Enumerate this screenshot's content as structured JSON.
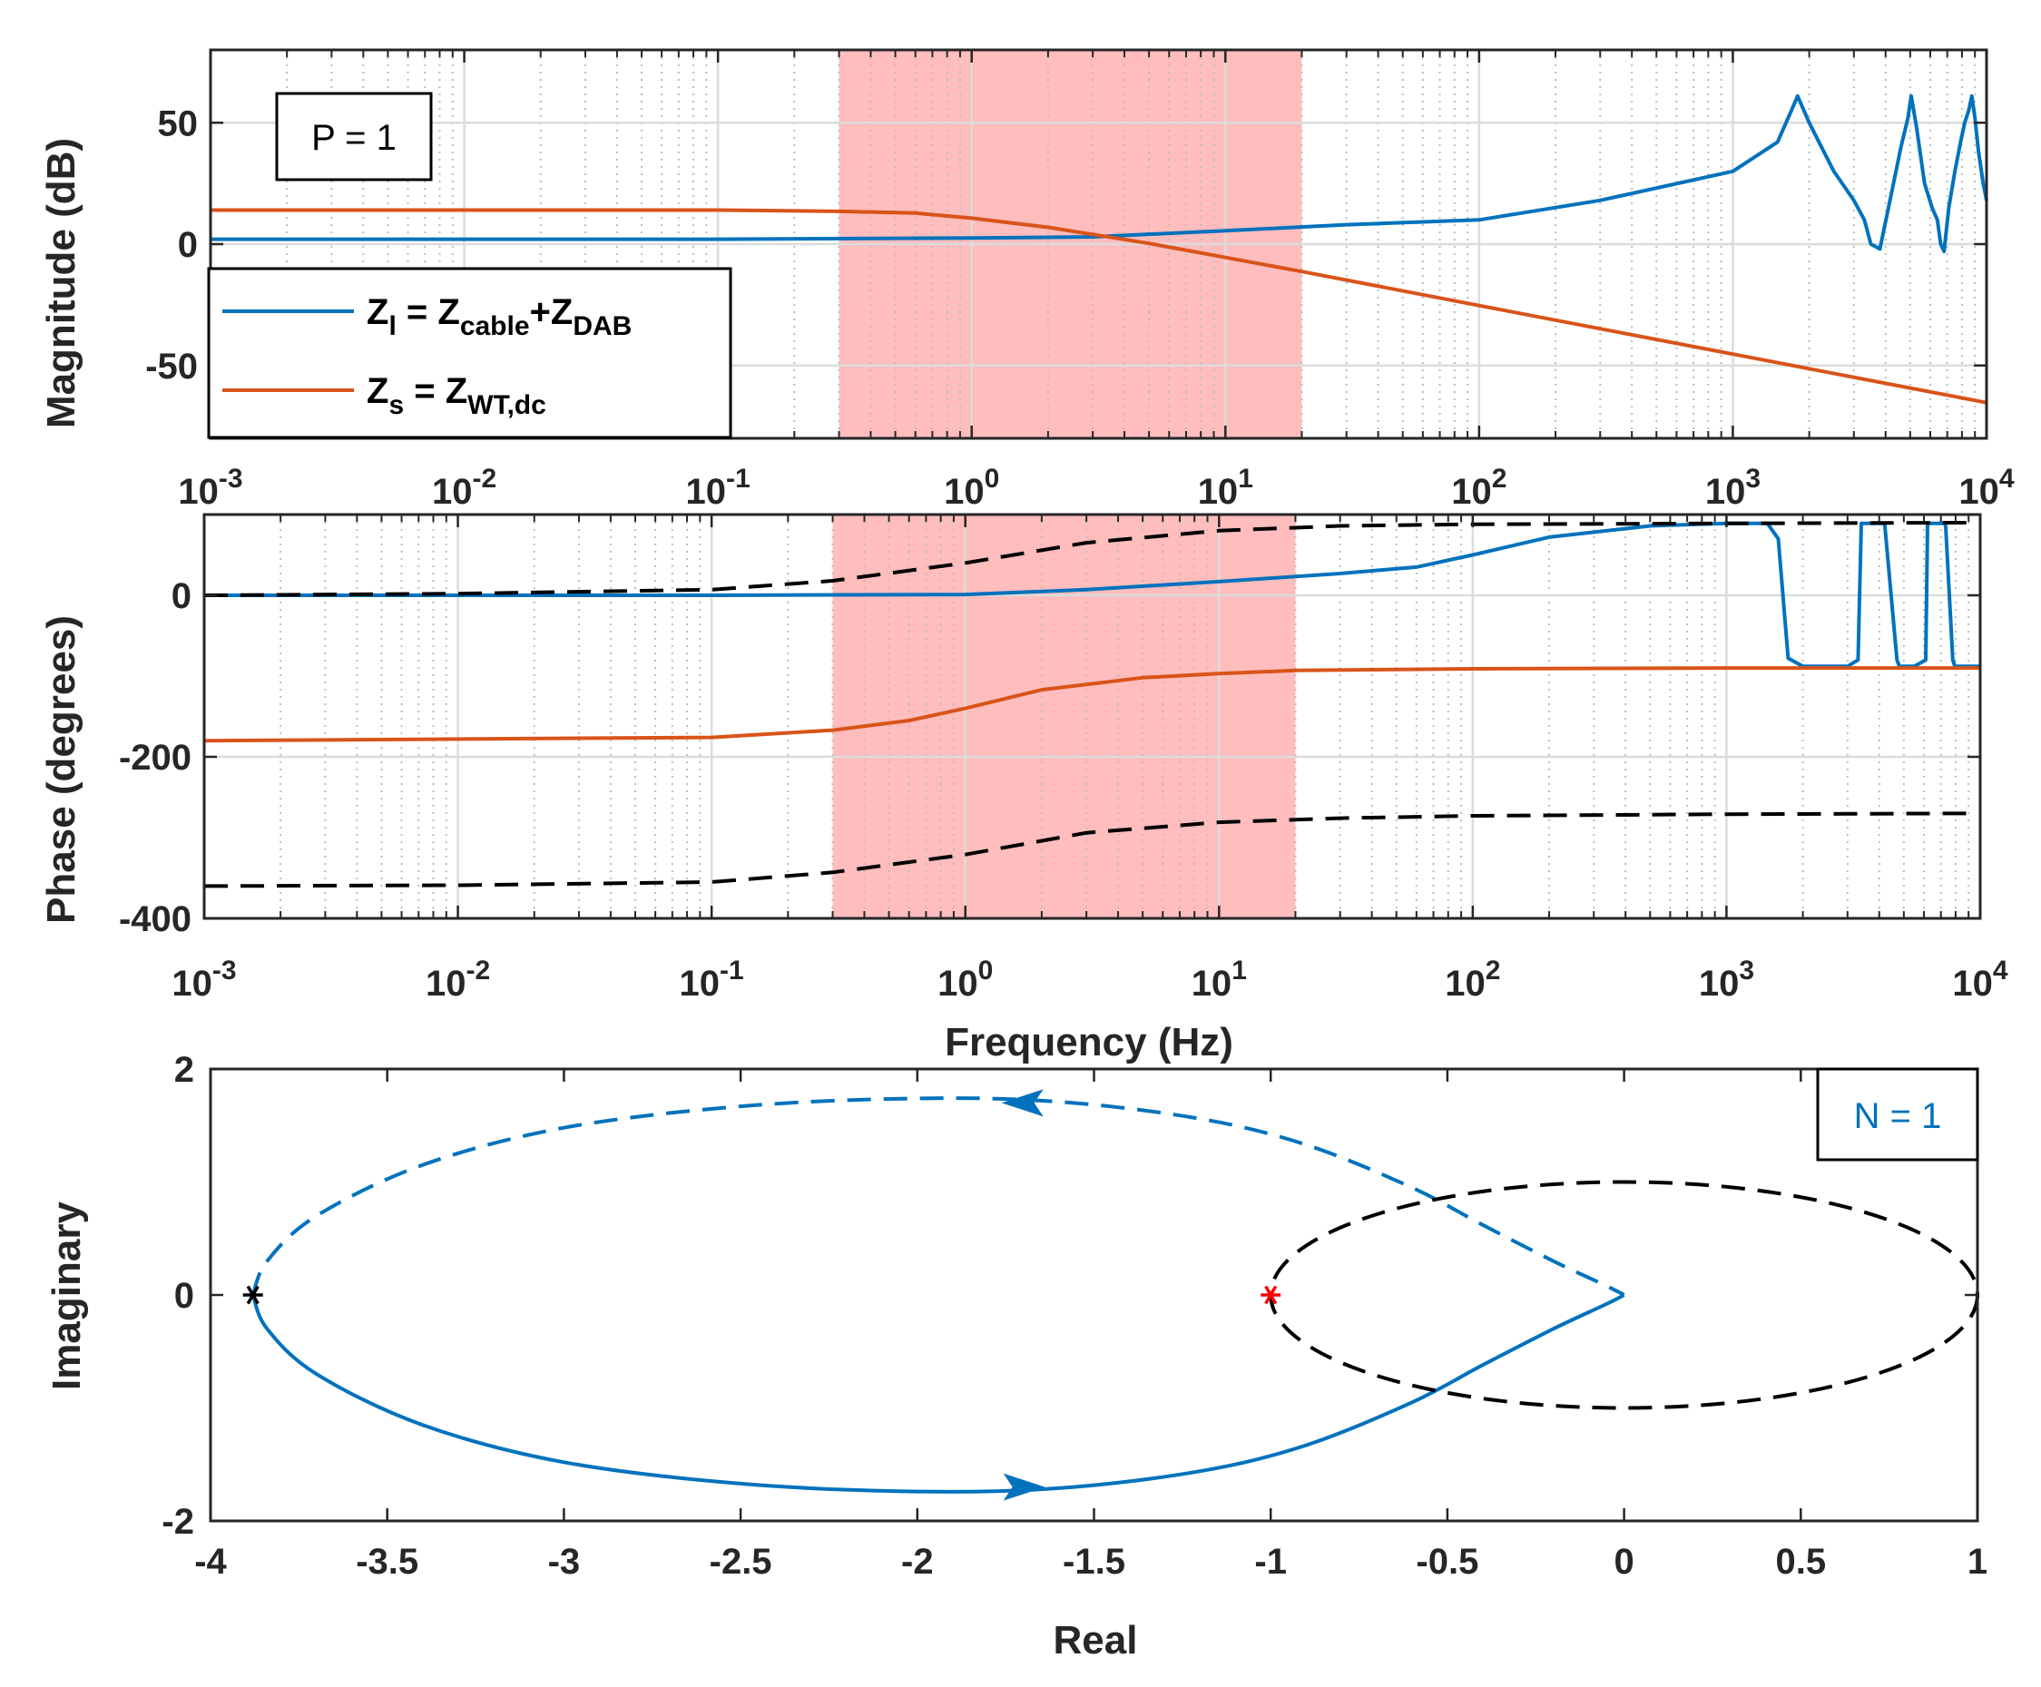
{
  "colors": {
    "zl": "#0072BD",
    "zs": "#D95319",
    "black": "#000000",
    "highlight": "#FF9999",
    "grid": "#DCDCDC",
    "axis": "#262626",
    "red_marker": "#FF0000"
  },
  "chart_data": [
    {
      "id": "magnitude",
      "type": "line",
      "xscale": "log",
      "xlim": [
        0.001,
        10000
      ],
      "ylim": [
        -80,
        80
      ],
      "xlabel": "",
      "ylabel": "Magnitude (dB)",
      "xtick_labels": [
        {
          "base": "10",
          "exp": "-3"
        },
        {
          "base": "10",
          "exp": "-2"
        },
        {
          "base": "10",
          "exp": "-1"
        },
        {
          "base": "10",
          "exp": "0"
        },
        {
          "base": "10",
          "exp": "1"
        },
        {
          "base": "10",
          "exp": "2"
        },
        {
          "base": "10",
          "exp": "3"
        },
        {
          "base": "10",
          "exp": "4"
        }
      ],
      "yticks": [
        50,
        0,
        -50
      ],
      "ytick_labels": [
        "50",
        "0",
        "-50"
      ],
      "grid": true,
      "highlight_band_hz": [
        0.3,
        20
      ],
      "annotation": "P = 1",
      "legend": {
        "position": "lower-left",
        "entries": [
          {
            "series": "Z_l",
            "main": "Z",
            "sub": "l",
            "mid": " = Z",
            "sub2": "cable",
            "mid2": "+Z",
            "sub3": "DAB"
          },
          {
            "series": "Z_s",
            "main": "Z",
            "sub": "s",
            "mid": " = Z",
            "sub2": "WT,dc",
            "mid2": "",
            "sub3": ""
          }
        ]
      },
      "series": [
        {
          "name": "Z_l",
          "color_key": "zl",
          "x": [
            0.001,
            0.01,
            0.1,
            1,
            3,
            10,
            30,
            100,
            300,
            1000,
            1500,
            1700,
            1800,
            2000,
            2500,
            3000,
            3300,
            3500,
            3800,
            4200,
            4600,
            4900,
            5050,
            5300,
            5700,
            6100,
            6400,
            6600,
            6800,
            7100,
            7500,
            7900,
            8200,
            8500,
            8750,
            9000,
            9300,
            9700,
            10000
          ],
          "values": [
            2,
            2,
            2,
            2.5,
            3,
            5.5,
            8,
            10,
            18,
            30,
            42,
            55,
            61,
            50,
            30,
            18,
            10,
            0,
            -2,
            20,
            40,
            52,
            61,
            48,
            25,
            15,
            10,
            0,
            -3,
            15,
            30,
            42,
            50,
            55,
            61,
            52,
            38,
            25,
            18
          ]
        },
        {
          "name": "Z_s",
          "color_key": "zs",
          "x": [
            0.001,
            0.01,
            0.1,
            0.3,
            0.6,
            1,
            2,
            5,
            10,
            20,
            100,
            1000,
            10000
          ],
          "values": [
            14,
            14,
            14,
            13.5,
            12.8,
            10.7,
            6.9,
            0.3,
            -5.5,
            -11.3,
            -25.3,
            -45.3,
            -65.3
          ]
        }
      ]
    },
    {
      "id": "phase",
      "type": "line",
      "xscale": "log",
      "xlim": [
        0.001,
        10000
      ],
      "ylim": [
        -400,
        100
      ],
      "xlabel": "Frequency (Hz)",
      "ylabel": "Phase (degrees)",
      "xtick_labels": [
        {
          "base": "10",
          "exp": "-3"
        },
        {
          "base": "10",
          "exp": "-2"
        },
        {
          "base": "10",
          "exp": "-1"
        },
        {
          "base": "10",
          "exp": "0"
        },
        {
          "base": "10",
          "exp": "1"
        },
        {
          "base": "10",
          "exp": "2"
        },
        {
          "base": "10",
          "exp": "3"
        },
        {
          "base": "10",
          "exp": "4"
        }
      ],
      "yticks": [
        0,
        -200,
        -400
      ],
      "ytick_labels": [
        "0",
        "-200",
        "-400"
      ],
      "grid": true,
      "highlight_band_hz": [
        0.3,
        20
      ],
      "series": [
        {
          "name": "Z_l",
          "color_key": "zl",
          "dash": false,
          "x": [
            0.001,
            0.1,
            1,
            3,
            10,
            30,
            60,
            100,
            200,
            500,
            1000,
            1450,
            1600,
            1750,
            2000,
            3000,
            3300,
            3400,
            3500,
            4200,
            4700,
            4800,
            4900,
            5500,
            6100,
            6200,
            6300,
            7300,
            7800,
            7950,
            8100,
            10000
          ],
          "values": [
            0,
            0,
            1,
            7,
            17,
            27,
            35,
            50,
            72,
            86,
            89,
            89,
            70,
            -78,
            -88,
            -88,
            -80,
            89,
            89,
            89,
            -80,
            -88,
            -88,
            -88,
            -80,
            89,
            89,
            89,
            -80,
            -88,
            -88,
            -88
          ]
        },
        {
          "name": "Z_s",
          "color_key": "zs",
          "dash": false,
          "x": [
            0.001,
            0.1,
            0.3,
            0.6,
            1,
            2,
            5,
            10,
            20,
            100,
            1000,
            10000
          ],
          "values": [
            -180,
            -176,
            -167,
            -155,
            -140,
            -117,
            -102,
            -97,
            -93,
            -91,
            -90,
            -90
          ]
        },
        {
          "name": "upper_bound",
          "color_key": "black",
          "dash": true,
          "x": [
            0.001,
            0.01,
            0.1,
            0.3,
            1,
            3,
            10,
            30,
            100,
            1000,
            10000
          ],
          "values": [
            0,
            2,
            7,
            18,
            40,
            65,
            80,
            86,
            88,
            89,
            90
          ]
        },
        {
          "name": "lower_bound",
          "color_key": "black",
          "dash": true,
          "x": [
            0.001,
            0.01,
            0.1,
            0.3,
            1,
            3,
            10,
            30,
            100,
            1000,
            10000
          ],
          "values": [
            -360,
            -359,
            -355,
            -343,
            -321,
            -294,
            -281,
            -276,
            -273,
            -271,
            -270
          ]
        }
      ]
    },
    {
      "id": "nyquist",
      "type": "line",
      "xlim": [
        -4,
        1
      ],
      "ylim": [
        -2,
        2
      ],
      "xlabel": "Real",
      "ylabel": "Imaginary",
      "xticks": [
        -4,
        -3.5,
        -3,
        -2.5,
        -2,
        -1.5,
        -1,
        -0.5,
        0,
        0.5,
        1
      ],
      "xtick_labels": [
        "-4",
        "-3.5",
        "-3",
        "-2.5",
        "-2",
        "-1.5",
        "-1",
        "-0.5",
        "0",
        "0.5",
        "1"
      ],
      "yticks": [
        2,
        0,
        -2
      ],
      "ytick_labels": [
        "2",
        "0",
        "-2"
      ],
      "grid": false,
      "annotation": "N = 1",
      "series": [
        {
          "name": "nyquist_negative_freq",
          "color_key": "zl",
          "dash": true,
          "x": [
            -3.88,
            -3.84,
            -3.7,
            -3.4,
            -3.0,
            -2.5,
            -2.0,
            -1.6,
            -1.2,
            -0.9,
            -0.6,
            -0.4,
            -0.2,
            -0.05,
            0
          ],
          "y": [
            0,
            0.3,
            0.7,
            1.15,
            1.48,
            1.67,
            1.74,
            1.71,
            1.56,
            1.33,
            0.95,
            0.62,
            0.3,
            0.08,
            0
          ]
        },
        {
          "name": "nyquist_positive_freq",
          "color_key": "zl",
          "dash": false,
          "x": [
            -3.88,
            -3.84,
            -3.7,
            -3.4,
            -3.0,
            -2.5,
            -2.0,
            -1.6,
            -1.2,
            -0.9,
            -0.6,
            -0.4,
            -0.2,
            -0.05,
            0
          ],
          "y": [
            0,
            -0.3,
            -0.7,
            -1.15,
            -1.48,
            -1.67,
            -1.74,
            -1.71,
            -1.56,
            -1.33,
            -0.95,
            -0.62,
            -0.3,
            -0.08,
            0
          ]
        },
        {
          "name": "reference_ellipse",
          "color_key": "black",
          "dash": true,
          "center": [
            0,
            0
          ],
          "radius_real": 1,
          "radius_imag": 1
        }
      ],
      "arrows": [
        {
          "x": -1.7,
          "y": 1.7,
          "direction": "left"
        },
        {
          "x": -1.7,
          "y": -1.7,
          "direction": "right"
        }
      ],
      "markers": [
        {
          "x": -3.88,
          "y": 0,
          "symbol": "*",
          "color_key": "black"
        },
        {
          "x": -1,
          "y": 0,
          "symbol": "*",
          "color_key": "red_marker"
        }
      ]
    }
  ]
}
